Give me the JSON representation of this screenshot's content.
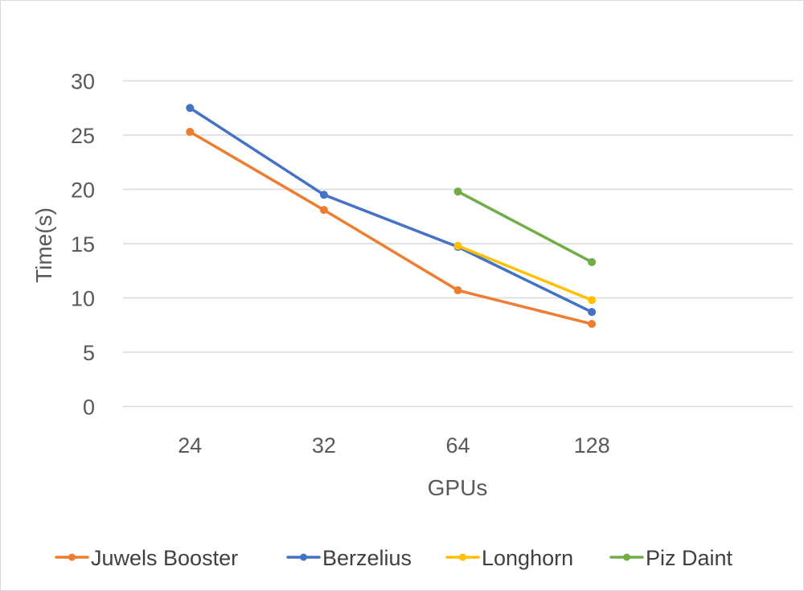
{
  "chart_data": {
    "type": "line",
    "title": "",
    "xlabel": "GPUs",
    "ylabel": "Time(s)",
    "categories": [
      "24",
      "32",
      "64",
      "128",
      ""
    ],
    "ylim": [
      0,
      30
    ],
    "yticks": [
      0,
      5,
      10,
      15,
      20,
      25,
      30
    ],
    "ytick_labels": [
      "0",
      "5",
      "10",
      "15",
      "20",
      "25",
      "30"
    ],
    "grid": true,
    "legend_position": "bottom",
    "series": [
      {
        "name": "Juwels Booster",
        "color": "#ED7D31",
        "values": [
          25.3,
          18.1,
          10.7,
          7.6,
          null
        ]
      },
      {
        "name": "Berzelius",
        "color": "#4472C4",
        "values": [
          27.5,
          19.5,
          14.7,
          8.7,
          null
        ]
      },
      {
        "name": "Longhorn",
        "color": "#FFC000",
        "values": [
          null,
          null,
          14.8,
          9.8,
          null
        ]
      },
      {
        "name": "Piz Daint",
        "color": "#70AD47",
        "values": [
          null,
          null,
          19.8,
          13.3,
          null
        ]
      }
    ]
  }
}
